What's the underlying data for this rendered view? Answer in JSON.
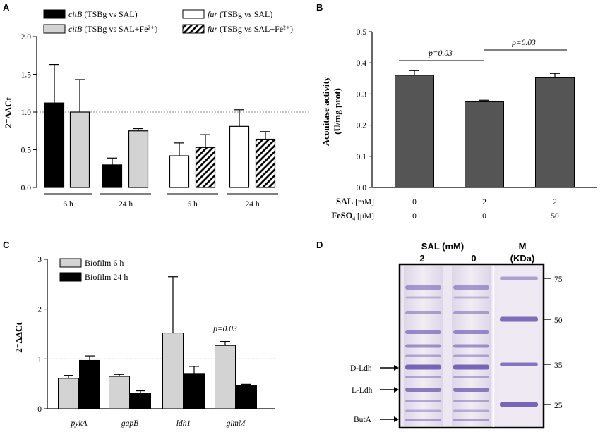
{
  "colors": {
    "black": "#000000",
    "light_gray": "#d3d3d3",
    "white": "#ffffff",
    "dark_gray": "#555555",
    "gel_bg": "#ebe6ef",
    "band": "#6a57b0"
  },
  "chart_data": [
    {
      "panel": "A",
      "type": "bar",
      "ylabel": "2⁻ΔΔCt",
      "ylim": [
        0,
        2.0
      ],
      "yticks": [
        "0.0",
        "0.5",
        "1.0",
        "1.5",
        "2.0"
      ],
      "reference_line": 1.0,
      "groups": [
        "6 h",
        "24 h",
        "6 h",
        "24 h"
      ],
      "legend": [
        {
          "gene": "citB",
          "text": " (TSBg vs SAL)"
        },
        {
          "gene": "citB",
          "text": " (TSBg vs SAL+Fe²⁺)"
        },
        {
          "gene": "fur",
          "text": " (TSBg vs SAL)"
        },
        {
          "gene": "fur",
          "text": " (TSBg vs SAL+Fe²⁺)"
        }
      ],
      "bars": [
        {
          "series": "citB SAL",
          "group": "6 h",
          "value": 1.12,
          "error": 0.51,
          "style": "black"
        },
        {
          "series": "citB SAL+Fe",
          "group": "6 h",
          "value": 1.0,
          "error": 0.43,
          "style": "gray"
        },
        {
          "series": "citB SAL",
          "group": "24 h",
          "value": 0.3,
          "error": 0.09,
          "style": "black"
        },
        {
          "series": "citB SAL+Fe",
          "group": "24 h",
          "value": 0.75,
          "error": 0.03,
          "style": "gray"
        },
        {
          "series": "fur SAL",
          "group": "6 h",
          "value": 0.42,
          "error": 0.17,
          "style": "white"
        },
        {
          "series": "fur SAL+Fe",
          "group": "6 h",
          "value": 0.53,
          "error": 0.17,
          "style": "hatch"
        },
        {
          "series": "fur SAL",
          "group": "24 h",
          "value": 0.81,
          "error": 0.22,
          "style": "white"
        },
        {
          "series": "fur SAL+Fe",
          "group": "24 h",
          "value": 0.64,
          "error": 0.1,
          "style": "hatch"
        }
      ]
    },
    {
      "panel": "B",
      "type": "bar",
      "ylabel_line1": "Aconitase activity",
      "ylabel_line2": "(U/mg prot)",
      "ylim": [
        0,
        0.5
      ],
      "yticks": [
        "0.0",
        "0.1",
        "0.2",
        "0.3",
        "0.4",
        "0.5"
      ],
      "values": [
        0.36,
        0.275,
        0.354
      ],
      "errors": [
        0.015,
        0.005,
        0.012
      ],
      "condition_rows": [
        {
          "label": "SAL",
          "unit": " [mM]",
          "values": [
            "0",
            "2",
            "2"
          ]
        },
        {
          "label": "FeSO₄",
          "unit": " [μM]",
          "values": [
            "0",
            "0",
            "50"
          ]
        }
      ],
      "annotations": [
        "p=0.03",
        "p=0.03"
      ]
    },
    {
      "panel": "C",
      "type": "bar",
      "ylabel": "2⁻ΔΔCt",
      "ylim": [
        0,
        3
      ],
      "yticks": [
        "0",
        "1",
        "2",
        "3"
      ],
      "reference_line": 1,
      "categories": [
        "pykA",
        "gapB",
        "ldh1",
        "glmM"
      ],
      "series": [
        {
          "name": "Biofilm 6 h",
          "values": [
            0.61,
            0.65,
            1.52,
            1.27
          ],
          "errors": [
            0.06,
            0.04,
            1.13,
            0.08
          ]
        },
        {
          "name": "Biofilm 24 h",
          "values": [
            0.97,
            0.31,
            0.71,
            0.46
          ],
          "errors": [
            0.09,
            0.05,
            0.14,
            0.03
          ]
        }
      ],
      "annotation": "p=0.03"
    }
  ],
  "panel_d": {
    "panel": "D",
    "header_sal": "SAL (mM)",
    "header_m": "M",
    "header_kda": "(KDa)",
    "lane_labels": [
      "2",
      "0"
    ],
    "markers": [
      "75",
      "50",
      "35",
      "25"
    ],
    "band_labels": [
      "D-Ldh",
      "L-Ldh",
      "ButA"
    ]
  },
  "panel_letters": [
    "A",
    "B",
    "C",
    "D"
  ]
}
